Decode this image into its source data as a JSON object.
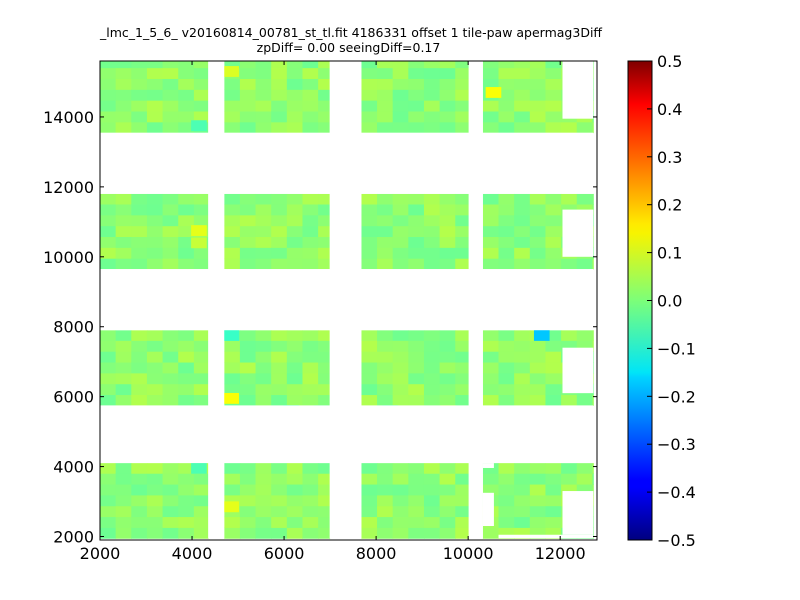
{
  "chart_data": {
    "type": "heatmap",
    "title_line1": "_lmc_1_5_6_ v20160814_00781_st_tl.fit 4186331 offset 1 tile-paw apermag3Diff",
    "title_line2": "zpDiff= 0.00 seeingDiff=0.17",
    "xlim": [
      2000,
      12800
    ],
    "ylim": [
      1900,
      15600
    ],
    "xticks": [
      "2000",
      "4000",
      "6000",
      "8000",
      "10000",
      "12000"
    ],
    "yticks": [
      "2000",
      "4000",
      "6000",
      "8000",
      "10000",
      "12000",
      "14000"
    ],
    "colorbar": {
      "vmin": -0.5,
      "vmax": 0.5,
      "ticks": [
        "0.5",
        "0.4",
        "0.3",
        "0.2",
        "0.1",
        "0.0",
        "−0.1",
        "−0.2",
        "−0.3",
        "−0.4",
        "−0.5"
      ]
    },
    "columns": [
      {
        "x0": 2000,
        "x1": 4350
      },
      {
        "x0": 4700,
        "x1": 6990
      },
      {
        "x0": 7680,
        "x1": 10010
      },
      {
        "x0": 10320,
        "x1": 12720
      }
    ],
    "row_groups": [
      {
        "y0": 13550,
        "y1": 15600
      },
      {
        "y0": 9650,
        "y1": 11800
      },
      {
        "y0": 5750,
        "y1": 7900
      },
      {
        "y0": 1950,
        "y1": 4100
      }
    ],
    "cell": {
      "dx": 340,
      "dy": 310
    },
    "base_value": 0.02,
    "highlight_cells": [
      {
        "x": 4850,
        "y": 15300,
        "value": 0.09
      },
      {
        "x": 10550,
        "y": 14700,
        "value": 0.12
      },
      {
        "x": 4150,
        "y": 10750,
        "value": 0.1
      },
      {
        "x": 4150,
        "y": 10400,
        "value": 0.07
      },
      {
        "x": 11600,
        "y": 7750,
        "value": -0.18
      },
      {
        "x": 4850,
        "y": 7750,
        "value": -0.07
      },
      {
        "x": 4850,
        "y": 5950,
        "value": 0.12
      },
      {
        "x": 4850,
        "y": 2850,
        "value": 0.1
      },
      {
        "x": 6150,
        "y": 5600,
        "value": -0.07
      },
      {
        "x": 6810,
        "y": 5600,
        "value": -0.02
      },
      {
        "x": 8300,
        "y": 5600,
        "value": -0.05
      },
      {
        "x": 9570,
        "y": 5600,
        "value": 0.06
      },
      {
        "x": 4150,
        "y": 3950,
        "value": -0.05
      },
      {
        "x": 4150,
        "y": 13750,
        "value": -0.05
      }
    ],
    "gaps": [
      {
        "x0": 4350,
        "x1": 4700
      },
      {
        "x0": 6990,
        "x1": 7680
      },
      {
        "x0": 10010,
        "x1": 10320
      }
    ]
  }
}
